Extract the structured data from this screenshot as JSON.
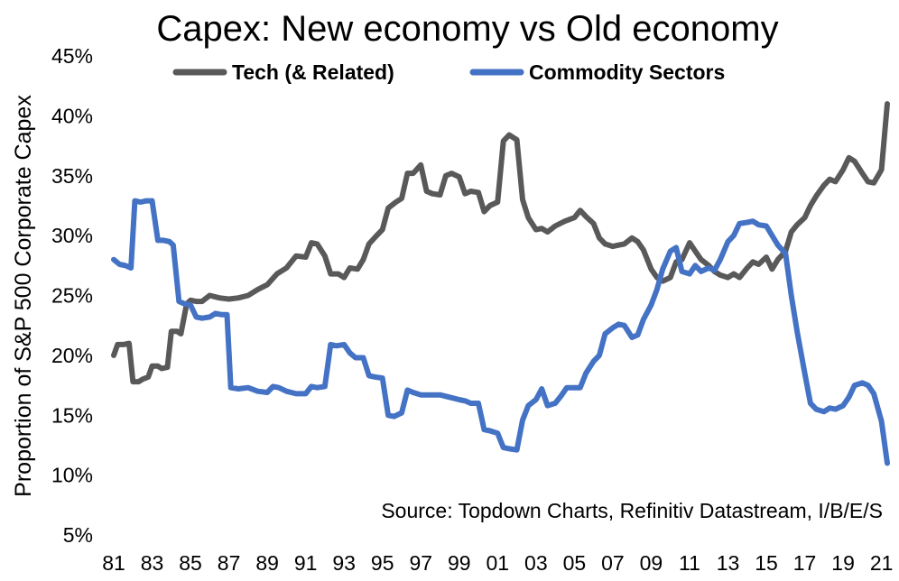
{
  "chart_data": {
    "type": "line",
    "title": "Capex: New economy vs Old economy",
    "ylabel": "Proportion of S&P 500 Corporate Capex",
    "xlabel": "",
    "ylim": [
      5,
      45
    ],
    "xlim": [
      1981,
      2021.3
    ],
    "y_ticks": [
      5,
      10,
      15,
      20,
      25,
      30,
      35,
      40,
      45
    ],
    "y_tick_labels": [
      "5%",
      "10%",
      "15%",
      "20%",
      "25%",
      "30%",
      "35%",
      "40%",
      "45%"
    ],
    "x_ticks": [
      1981,
      1983,
      1985,
      1987,
      1989,
      1991,
      1993,
      1995,
      1997,
      1999,
      2001,
      2003,
      2005,
      2007,
      2009,
      2011,
      2013,
      2015,
      2017,
      2019,
      2021
    ],
    "x_tick_labels": [
      "81",
      "83",
      "85",
      "87",
      "89",
      "91",
      "93",
      "95",
      "97",
      "99",
      "01",
      "03",
      "05",
      "07",
      "09",
      "11",
      "13",
      "15",
      "17",
      "19",
      "21"
    ],
    "grid": false,
    "legend_position": "top",
    "source": "Source: Topdown Charts, Refinitiv Datastream, I/B/E/S",
    "series": [
      {
        "name": "Tech (& Related)",
        "color": "#595959",
        "x": [
          1981.0,
          1981.2,
          1981.5,
          1981.8,
          1982.0,
          1982.3,
          1982.5,
          1982.8,
          1983.0,
          1983.3,
          1983.5,
          1983.8,
          1984.0,
          1984.3,
          1984.5,
          1984.8,
          1985.0,
          1985.3,
          1985.6,
          1986.0,
          1986.5,
          1987.0,
          1987.5,
          1988.0,
          1988.5,
          1989.0,
          1989.5,
          1990.0,
          1990.5,
          1991.0,
          1991.3,
          1991.6,
          1992.0,
          1992.3,
          1992.7,
          1993.0,
          1993.3,
          1993.7,
          1994.0,
          1994.3,
          1994.7,
          1995.0,
          1995.3,
          1995.7,
          1996.0,
          1996.3,
          1996.6,
          1997.0,
          1997.3,
          1997.6,
          1998.0,
          1998.3,
          1998.6,
          1999.0,
          1999.3,
          1999.6,
          2000.0,
          2000.3,
          2000.6,
          2001.0,
          2001.3,
          2001.6,
          2002.0,
          2002.3,
          2002.6,
          2003.0,
          2003.3,
          2003.6,
          2004.0,
          2004.5,
          2005.0,
          2005.3,
          2005.6,
          2006.0,
          2006.3,
          2006.6,
          2007.0,
          2007.3,
          2007.6,
          2008.0,
          2008.3,
          2008.6,
          2009.0,
          2009.3,
          2009.6,
          2010.0,
          2010.3,
          2010.6,
          2011.0,
          2011.3,
          2011.6,
          2012.0,
          2012.3,
          2012.6,
          2013.0,
          2013.3,
          2013.6,
          2014.0,
          2014.3,
          2014.6,
          2015.0,
          2015.3,
          2015.6,
          2016.0,
          2016.3,
          2016.6,
          2017.0,
          2017.3,
          2017.6,
          2018.0,
          2018.3,
          2018.6,
          2019.0,
          2019.3,
          2019.6,
          2020.0,
          2020.3,
          2020.6,
          2021.0,
          2021.3
        ],
        "values": [
          20.0,
          20.9,
          20.9,
          21.0,
          17.8,
          17.8,
          18.0,
          18.2,
          19.1,
          19.1,
          18.9,
          19.0,
          22.0,
          22.0,
          21.8,
          24.3,
          24.6,
          24.5,
          24.5,
          25.0,
          24.8,
          24.7,
          24.8,
          25.0,
          25.5,
          25.9,
          26.8,
          27.3,
          28.3,
          28.2,
          29.4,
          29.3,
          28.3,
          26.8,
          26.8,
          26.5,
          27.3,
          27.2,
          28.0,
          29.3,
          30.0,
          30.5,
          32.3,
          32.8,
          33.1,
          35.2,
          35.2,
          35.9,
          33.7,
          33.5,
          33.4,
          35.0,
          35.2,
          34.9,
          33.5,
          33.7,
          33.6,
          32.0,
          32.5,
          32.8,
          37.9,
          38.4,
          38.0,
          33.0,
          31.5,
          30.5,
          30.6,
          30.3,
          30.8,
          31.2,
          31.5,
          32.1,
          31.6,
          31.0,
          29.8,
          29.3,
          29.1,
          29.2,
          29.3,
          29.8,
          29.5,
          28.8,
          27.2,
          26.5,
          26.2,
          26.5,
          27.8,
          28.0,
          29.4,
          28.7,
          28.0,
          27.5,
          27.0,
          26.7,
          26.5,
          26.8,
          26.5,
          27.3,
          27.8,
          27.6,
          28.2,
          27.2,
          28.0,
          28.7,
          30.3,
          30.9,
          31.5,
          32.5,
          33.3,
          34.2,
          34.7,
          34.5,
          35.5,
          36.5,
          36.2,
          35.2,
          34.5,
          34.4,
          35.5,
          41.0
        ],
        "x_tail": [
          2020.0,
          2020.3,
          2020.6,
          2021.0,
          2021.3
        ]
      },
      {
        "name": "Commodity Sectors",
        "color": "#4472c4",
        "x": [
          1981.0,
          1981.3,
          1981.6,
          1981.9,
          1982.1,
          1982.4,
          1982.7,
          1983.0,
          1983.3,
          1983.6,
          1983.9,
          1984.1,
          1984.4,
          1984.7,
          1985.0,
          1985.3,
          1985.6,
          1986.0,
          1986.3,
          1986.6,
          1986.9,
          1987.1,
          1987.5,
          1988.0,
          1988.5,
          1989.0,
          1989.3,
          1989.6,
          1990.0,
          1990.5,
          1991.0,
          1991.3,
          1991.6,
          1992.0,
          1992.3,
          1992.6,
          1993.0,
          1993.3,
          1993.6,
          1994.0,
          1994.3,
          1994.6,
          1995.0,
          1995.3,
          1995.6,
          1996.0,
          1996.3,
          1996.6,
          1997.0,
          1997.5,
          1998.0,
          1998.5,
          1999.0,
          1999.3,
          1999.6,
          2000.0,
          2000.3,
          2000.6,
          2001.0,
          2001.3,
          2001.6,
          2002.0,
          2002.3,
          2002.6,
          2003.0,
          2003.3,
          2003.6,
          2004.0,
          2004.3,
          2004.6,
          2005.0,
          2005.3,
          2005.6,
          2006.0,
          2006.3,
          2006.6,
          2007.0,
          2007.3,
          2007.6,
          2008.0,
          2008.3,
          2008.6,
          2009.0,
          2009.3,
          2009.6,
          2010.0,
          2010.3,
          2010.6,
          2011.0,
          2011.3,
          2011.6,
          2012.0,
          2012.3,
          2012.6,
          2013.0,
          2013.3,
          2013.6,
          2014.0,
          2014.3,
          2014.6,
          2015.0,
          2015.3,
          2015.6,
          2016.0,
          2016.3,
          2016.6,
          2017.0,
          2017.3,
          2017.6,
          2018.0,
          2018.3,
          2018.6,
          2019.0,
          2019.3,
          2019.6,
          2020.0,
          2020.3,
          2020.6,
          2021.0,
          2021.3
        ],
        "values": [
          28.0,
          27.6,
          27.5,
          27.3,
          32.9,
          32.8,
          32.9,
          32.9,
          29.6,
          29.6,
          29.5,
          29.2,
          24.5,
          24.3,
          24.2,
          23.2,
          23.1,
          23.2,
          23.5,
          23.4,
          23.4,
          17.3,
          17.2,
          17.3,
          17.0,
          16.9,
          17.4,
          17.3,
          17.0,
          16.8,
          16.8,
          17.4,
          17.3,
          17.4,
          20.9,
          20.8,
          20.9,
          20.2,
          19.8,
          19.8,
          18.3,
          18.2,
          18.1,
          15.0,
          14.9,
          15.2,
          17.1,
          16.9,
          16.7,
          16.7,
          16.7,
          16.5,
          16.3,
          16.2,
          16.0,
          16.0,
          13.8,
          13.7,
          13.5,
          12.3,
          12.2,
          12.1,
          14.6,
          15.8,
          16.3,
          17.2,
          15.8,
          16.0,
          16.6,
          17.3,
          17.3,
          17.3,
          18.5,
          19.5,
          20.0,
          21.8,
          22.3,
          22.6,
          22.5,
          21.5,
          21.7,
          23.0,
          24.2,
          25.5,
          27.2,
          28.7,
          29.0,
          27.0,
          26.8,
          27.5,
          27.0,
          27.3,
          27.1,
          28.0,
          29.5,
          30.0,
          31.0,
          31.1,
          31.2,
          30.9,
          30.8,
          30.0,
          29.2,
          28.5,
          25.0,
          22.0,
          18.5,
          16.0,
          15.5,
          15.3,
          15.6,
          15.5,
          15.8,
          16.5,
          17.5,
          17.7,
          17.5,
          16.8,
          14.5,
          11.0
        ]
      }
    ]
  }
}
